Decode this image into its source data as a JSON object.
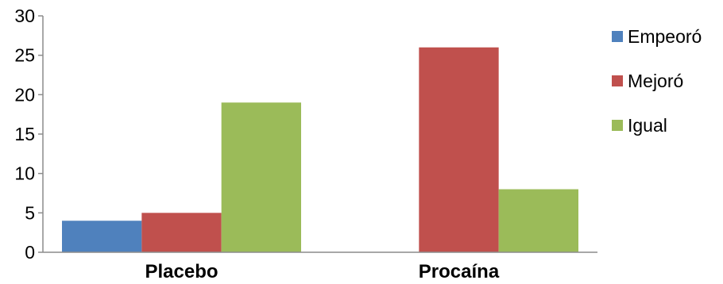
{
  "chart_data": {
    "type": "bar",
    "title": "",
    "xlabel": "",
    "ylabel": "",
    "categories": [
      "Placebo",
      "Procaína"
    ],
    "series": [
      {
        "name": "Empeoró",
        "values": [
          4,
          0
        ],
        "color": "#4F81BD"
      },
      {
        "name": "Mejoró",
        "values": [
          5,
          26
        ],
        "color": "#C0504D"
      },
      {
        "name": "Igual",
        "values": [
          19,
          8
        ],
        "color": "#9BBB59"
      }
    ],
    "ylim": [
      0,
      30
    ],
    "yticks": [
      "0",
      "5",
      "10",
      "15",
      "20",
      "25",
      "30"
    ],
    "grid": false,
    "legend_position": "right"
  }
}
